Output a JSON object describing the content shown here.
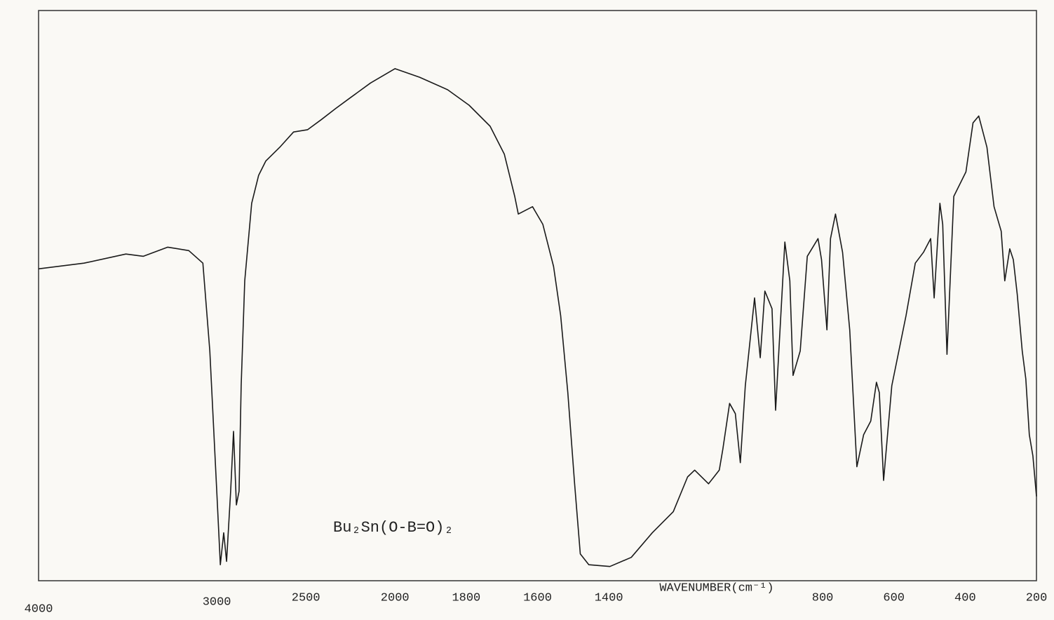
{
  "chart_data": {
    "type": "line",
    "x_label": "WAVENUMBER(cm⁻¹)",
    "annotation": "Bu₂Sn(O-B=O)₂",
    "xlim": [
      4000,
      200
    ],
    "x_scale_change": 2000,
    "xticks": [
      4000,
      3000,
      2500,
      2000,
      1800,
      1600,
      1400,
      800,
      600,
      400,
      200
    ],
    "ylim": [
      0,
      100
    ],
    "color": "#1a1a1a",
    "x": [
      4000,
      3745,
      3510,
      3412,
      3275,
      3157,
      3078,
      3039,
      3000,
      2980,
      2961,
      2945,
      2922,
      2906,
      2890,
      2875,
      2863,
      2843,
      2804,
      2765,
      2725,
      2647,
      2569,
      2490,
      2412,
      2333,
      2255,
      2137,
      2000,
      1931,
      1852,
      1792,
      1733,
      1693,
      1664,
      1654,
      1614,
      1585,
      1555,
      1535,
      1515,
      1496,
      1480,
      1456,
      1397,
      1337,
      1278,
      1219,
      1179,
      1159,
      1120,
      1090,
      1080,
      1061,
      1045,
      1031,
      1017,
      991,
      975,
      962,
      942,
      932,
      906,
      892,
      883,
      863,
      843,
      813,
      803,
      788,
      778,
      764,
      744,
      724,
      704,
      685,
      665,
      649,
      641,
      629,
      606,
      566,
      540,
      517,
      497,
      487,
      471,
      463,
      451,
      432,
      398,
      378,
      362,
      339,
      319,
      299,
      289,
      275,
      265,
      254,
      240,
      230,
      220,
      210,
      200
    ],
    "values": [
      54.7,
      55.7,
      57.3,
      56.9,
      58.5,
      57.9,
      55.7,
      40.3,
      15.7,
      2.8,
      8.4,
      3.4,
      15.7,
      26.2,
      13.3,
      15.7,
      34.2,
      52.6,
      66.2,
      71.1,
      73.6,
      76.0,
      78.7,
      79.1,
      80.9,
      82.8,
      84.6,
      87.3,
      89.8,
      88.3,
      86.1,
      83.4,
      79.7,
      74.8,
      67.4,
      64.3,
      65.6,
      62.5,
      55.1,
      46.5,
      33.0,
      17.0,
      4.7,
      2.8,
      2.5,
      4.1,
      8.4,
      12.1,
      18.2,
      19.4,
      17.0,
      19.4,
      23.1,
      31.1,
      29.3,
      20.7,
      34.2,
      49.6,
      39.1,
      50.8,
      47.7,
      29.9,
      59.4,
      52.6,
      36.0,
      40.3,
      56.9,
      60.0,
      56.3,
      44.0,
      60.0,
      64.3,
      57.6,
      44.0,
      20.0,
      25.6,
      28.0,
      34.8,
      33.0,
      17.6,
      34.2,
      46.5,
      55.7,
      57.6,
      60.0,
      49.6,
      66.2,
      62.5,
      39.7,
      67.4,
      71.7,
      80.3,
      81.5,
      76.0,
      65.6,
      61.3,
      52.6,
      58.2,
      56.3,
      50.2,
      40.3,
      35.4,
      25.6,
      21.9,
      14.8
    ]
  }
}
